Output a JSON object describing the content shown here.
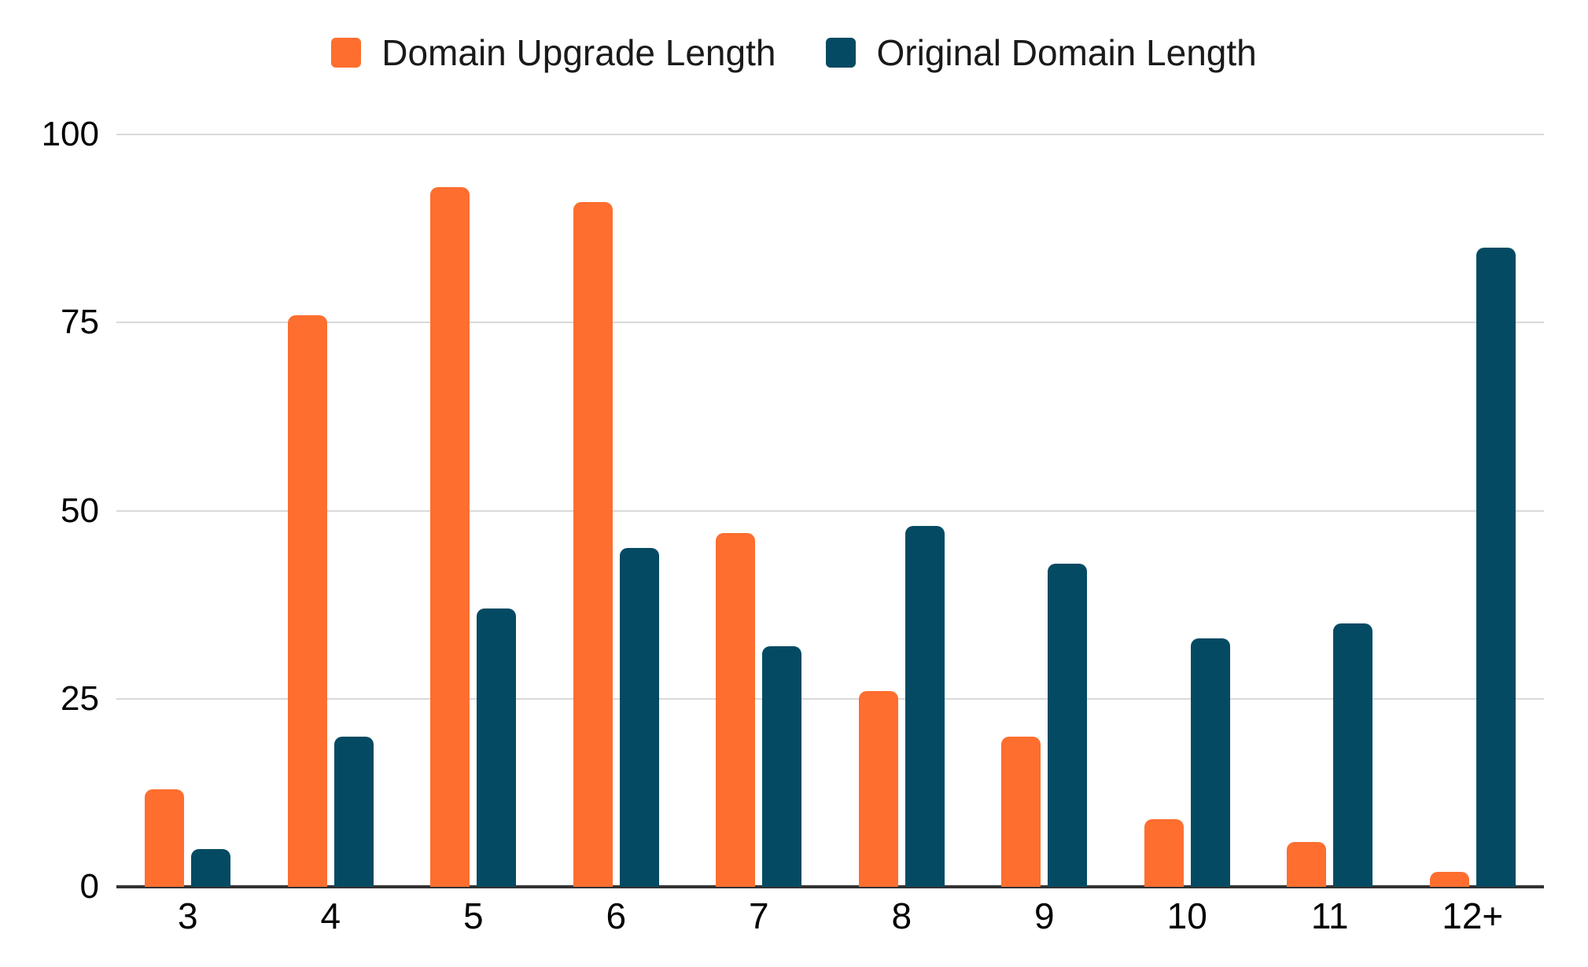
{
  "chart_data": {
    "type": "bar",
    "title": "",
    "xlabel": "",
    "ylabel": "",
    "categories": [
      "3",
      "4",
      "5",
      "6",
      "7",
      "8",
      "9",
      "10",
      "11",
      "12+"
    ],
    "series": [
      {
        "name": "Domain Upgrade Length",
        "color": "#fd6e2f",
        "values": [
          13,
          76,
          93,
          91,
          47,
          26,
          20,
          9,
          6,
          2
        ]
      },
      {
        "name": "Original Domain Length",
        "color": "#054a63",
        "values": [
          5,
          20,
          37,
          45,
          32,
          48,
          43,
          33,
          35,
          85
        ]
      }
    ],
    "ylim": [
      0,
      100
    ],
    "yticks": [
      0,
      25,
      50,
      75,
      100
    ],
    "grid": true,
    "legend_position": "top",
    "colors": {
      "gridline": "#d9d9d9",
      "axis_line": "#333333",
      "tick_label": "#000000"
    }
  }
}
